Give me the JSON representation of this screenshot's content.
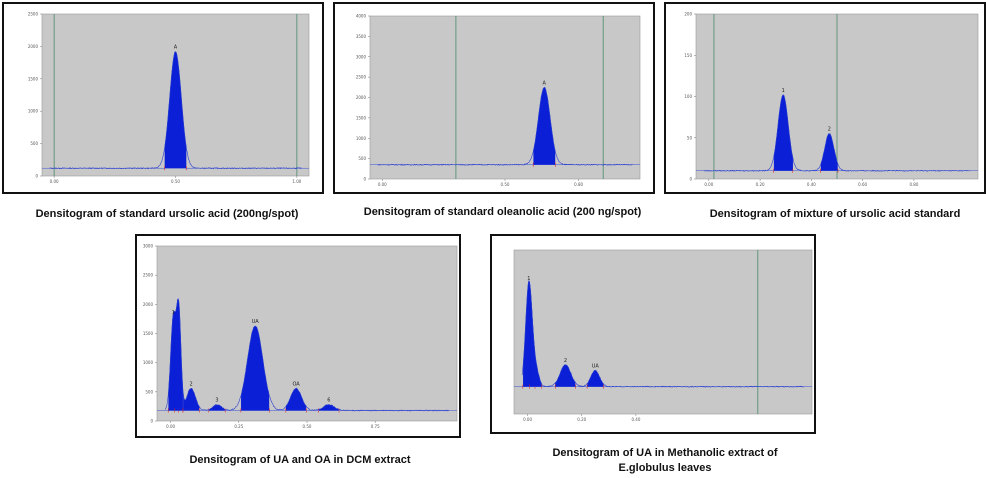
{
  "panels": [
    {
      "caption": "Densitogram of standard ursolic acid (200ng/spot)",
      "chart_data": {
        "type": "line",
        "title": "",
        "xlabel": "",
        "ylabel": "",
        "ylim": [
          0,
          2500
        ],
        "xlim": [
          -0.05,
          1.05
        ],
        "y_ticks": [
          0,
          500,
          1000,
          1500,
          2000,
          2500
        ],
        "x_ticks": [
          0.0,
          0.5,
          1.0
        ],
        "baseline": 120,
        "vlines": [
          0.0,
          1.0
        ],
        "peaks": [
          {
            "label": "A",
            "rf": 0.5,
            "height": 1800,
            "width": 0.06
          }
        ],
        "grid": false
      }
    },
    {
      "caption": "Densitogram of standard oleanolic acid (200 ng/spot)",
      "chart_data": {
        "type": "line",
        "title": "",
        "xlabel": "",
        "ylabel": "",
        "ylim": [
          0,
          4000
        ],
        "xlim": [
          -0.05,
          1.05
        ],
        "y_ticks": [
          0,
          500,
          1000,
          1500,
          2000,
          2500,
          3000,
          3500,
          4000
        ],
        "x_ticks": [
          0.0,
          0.5,
          0.8
        ],
        "baseline": 350,
        "vlines": [
          0.3,
          0.9
        ],
        "peaks": [
          {
            "label": "A",
            "rf": 0.66,
            "height": 1900,
            "width": 0.06
          }
        ],
        "grid": false
      }
    },
    {
      "caption": "Densitogram of mixture of ursolic acid standard",
      "chart_data": {
        "type": "line",
        "title": "",
        "xlabel": "",
        "ylabel": "",
        "ylim": [
          0,
          200
        ],
        "xlim": [
          -0.05,
          1.05
        ],
        "y_ticks": [
          0,
          50,
          100,
          150,
          200
        ],
        "x_ticks": [
          0.0,
          0.2,
          0.4,
          0.6,
          0.8
        ],
        "baseline": 10,
        "vlines": [
          0.02,
          0.5
        ],
        "peaks": [
          {
            "label": "1",
            "rf": 0.29,
            "height": 92,
            "width": 0.05
          },
          {
            "label": "2",
            "rf": 0.47,
            "height": 45,
            "width": 0.045
          }
        ],
        "grid": false
      }
    },
    {
      "caption": "Densitogram of UA and OA in DCM extract",
      "chart_data": {
        "type": "line",
        "title": "",
        "xlabel": "",
        "ylabel": "",
        "ylim": [
          0,
          3000
        ],
        "xlim": [
          -0.05,
          1.05
        ],
        "y_ticks": [
          0,
          500,
          1000,
          1500,
          2000,
          2500,
          3000
        ],
        "x_ticks": [
          0.0,
          0.25,
          0.5,
          0.75
        ],
        "baseline": 180,
        "vlines": [],
        "peaks": [
          {
            "label": "1",
            "rf": 0.01,
            "height": 1600,
            "width": 0.025
          },
          {
            "label": "",
            "rf": 0.03,
            "height": 1650,
            "width": 0.02
          },
          {
            "label": "2",
            "rf": 0.075,
            "height": 380,
            "width": 0.04
          },
          {
            "label": "3",
            "rf": 0.17,
            "height": 100,
            "width": 0.04
          },
          {
            "label": "UA",
            "rf": 0.31,
            "height": 1450,
            "width": 0.07
          },
          {
            "label": "OA",
            "rf": 0.46,
            "height": 380,
            "width": 0.05
          },
          {
            "label": "6",
            "rf": 0.58,
            "height": 100,
            "width": 0.05
          }
        ],
        "grid": false
      }
    },
    {
      "caption": "Densitogram of UA in Methanolic extract of E.globulus leaves",
      "chart_data": {
        "type": "line",
        "title": "",
        "xlabel": "",
        "ylabel": "",
        "ylim": [
          0,
          150
        ],
        "xlim": [
          -0.05,
          1.05
        ],
        "y_ticks": [],
        "x_ticks": [
          0.0,
          0.2,
          0.4
        ],
        "baseline": 25,
        "vlines": [
          0.85
        ],
        "peaks": [
          {
            "label": "1",
            "rf": 0.005,
            "height": 95,
            "width": 0.03
          },
          {
            "label": "",
            "rf": 0.03,
            "height": 15,
            "width": 0.03
          },
          {
            "label": "2",
            "rf": 0.14,
            "height": 20,
            "width": 0.05
          },
          {
            "label": "UA",
            "rf": 0.25,
            "height": 15,
            "width": 0.04
          }
        ],
        "grid": false
      }
    }
  ]
}
